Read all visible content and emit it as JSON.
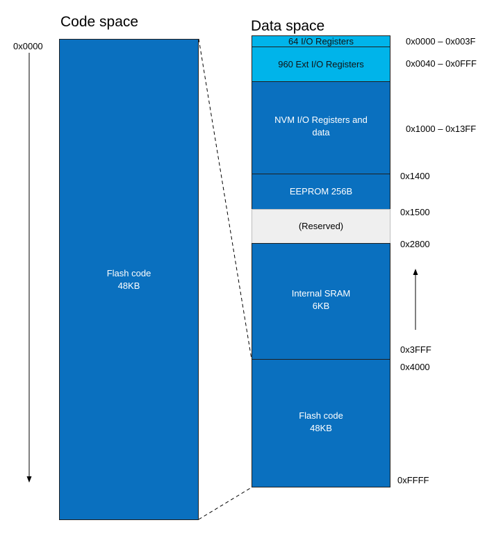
{
  "code_space": {
    "title": "Code space",
    "start_address": "0x0000",
    "block": {
      "line1": "Flash code",
      "line2": "48KB"
    }
  },
  "data_space": {
    "title": "Data space",
    "blocks": [
      {
        "label": "64 I/O Registers",
        "range": "0x0000 – 0x003F"
      },
      {
        "label": "960 Ext I/O Registers",
        "range": "0x0040 – 0x0FFF"
      },
      {
        "label_line1": "NVM I/O Registers and",
        "label_line2": "data",
        "range": "0x1000 – 0x13FF"
      },
      {
        "label": "EEPROM 256B",
        "address": "0x1400"
      },
      {
        "label": "(Reserved)",
        "address": "0x1500"
      },
      {
        "label_line1": "Internal SRAM",
        "label_line2": "6KB",
        "address_top": "0x2800",
        "address_bottom": "0x3FFF"
      },
      {
        "label_line1": "Flash code",
        "label_line2": "48KB",
        "address_top": "0x4000",
        "address_bottom": "0xFFFF"
      }
    ]
  },
  "colors": {
    "dark_blue": "#0a70bf",
    "light_blue": "#00b4ea",
    "reserved_gray": "#efefef"
  }
}
